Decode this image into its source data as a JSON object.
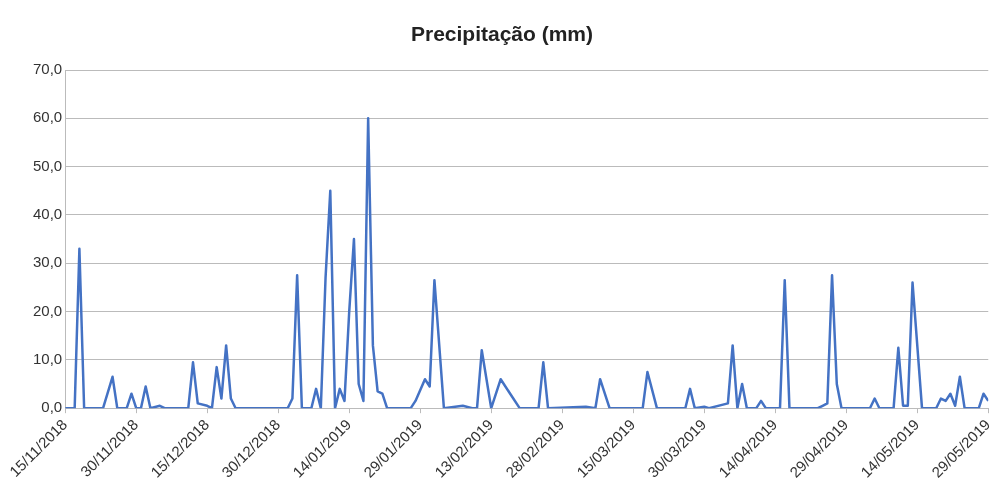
{
  "chart_data": {
    "type": "line",
    "title": "Precipitação (mm)",
    "x": [
      "2018-11-15",
      "2018-11-17",
      "2018-11-18",
      "2018-11-19",
      "2018-11-23",
      "2018-11-25",
      "2018-11-26",
      "2018-11-28",
      "2018-11-29",
      "2018-11-30",
      "2018-12-01",
      "2018-12-02",
      "2018-12-03",
      "2018-12-05",
      "2018-12-06",
      "2018-12-11",
      "2018-12-12",
      "2018-12-13",
      "2018-12-15",
      "2018-12-16",
      "2018-12-17",
      "2018-12-18",
      "2018-12-19",
      "2018-12-20",
      "2018-12-21",
      "2019-01-01",
      "2019-01-02",
      "2019-01-03",
      "2019-01-04",
      "2019-01-06",
      "2019-01-07",
      "2019-01-08",
      "2019-01-09",
      "2019-01-10",
      "2019-01-11",
      "2019-01-12",
      "2019-01-13",
      "2019-01-14",
      "2019-01-15",
      "2019-01-16",
      "2019-01-17",
      "2019-01-18",
      "2019-01-19",
      "2019-01-20",
      "2019-01-21",
      "2019-01-22",
      "2019-01-27",
      "2019-01-28",
      "2019-01-30",
      "2019-01-31",
      "2019-02-01",
      "2019-02-03",
      "2019-02-07",
      "2019-02-09",
      "2019-02-10",
      "2019-02-11",
      "2019-02-13",
      "2019-02-15",
      "2019-02-17",
      "2019-02-19",
      "2019-02-23",
      "2019-02-24",
      "2019-02-25",
      "2019-03-05",
      "2019-03-07",
      "2019-03-08",
      "2019-03-10",
      "2019-03-17",
      "2019-03-18",
      "2019-03-20",
      "2019-03-26",
      "2019-03-27",
      "2019-03-28",
      "2019-03-30",
      "2019-03-31",
      "2019-04-04",
      "2019-04-05",
      "2019-04-06",
      "2019-04-07",
      "2019-04-08",
      "2019-04-10",
      "2019-04-11",
      "2019-04-12",
      "2019-04-15",
      "2019-04-16",
      "2019-04-17",
      "2019-04-23",
      "2019-04-24",
      "2019-04-25",
      "2019-04-26",
      "2019-04-27",
      "2019-04-28",
      "2019-05-04",
      "2019-05-05",
      "2019-05-06",
      "2019-05-09",
      "2019-05-10",
      "2019-05-11",
      "2019-05-12",
      "2019-05-13",
      "2019-05-14",
      "2019-05-15",
      "2019-05-18",
      "2019-05-19",
      "2019-05-20",
      "2019-05-21",
      "2019-05-22",
      "2019-05-23",
      "2019-05-24",
      "2019-05-27",
      "2019-05-28",
      "2019-05-29"
    ],
    "series": [
      {
        "color": "#4472c4",
        "values": [
          0,
          0,
          33,
          0,
          0,
          6.5,
          0,
          0,
          3,
          0,
          0,
          4.5,
          0,
          0.5,
          0,
          0,
          9.5,
          1,
          0.5,
          0,
          8.5,
          2,
          13,
          2,
          0,
          0,
          2,
          27.5,
          0,
          0,
          4,
          0,
          27,
          45,
          0,
          4,
          1.5,
          20,
          35,
          5,
          1.5,
          60,
          13,
          3.5,
          3,
          0,
          0,
          1.5,
          6,
          4.5,
          26.5,
          0,
          0.5,
          0,
          0,
          12,
          0,
          6,
          3,
          0,
          0,
          9.5,
          0,
          0.3,
          0,
          6,
          0,
          0,
          7.5,
          0,
          0,
          4,
          0,
          0.3,
          0,
          1,
          13,
          0,
          5,
          0,
          0,
          1.5,
          0,
          0,
          26.5,
          0,
          0,
          0.5,
          1,
          27.5,
          5,
          0,
          0,
          2,
          0,
          0,
          12.5,
          0.5,
          0.5,
          26,
          13,
          0,
          0,
          2,
          1.5,
          3,
          0.5,
          6.5,
          0,
          0,
          3,
          1.5
        ]
      }
    ],
    "xlim": [
      "2018-11-15",
      "2019-05-29"
    ],
    "xticks": [
      {
        "value": "2018-11-15",
        "label": "15/11/2018"
      },
      {
        "value": "2018-11-30",
        "label": "30/11/2018"
      },
      {
        "value": "2018-12-15",
        "label": "15/12/2018"
      },
      {
        "value": "2018-12-30",
        "label": "30/12/2018"
      },
      {
        "value": "2019-01-14",
        "label": "14/01/2019"
      },
      {
        "value": "2019-01-29",
        "label": "29/01/2019"
      },
      {
        "value": "2019-02-13",
        "label": "13/02/2019"
      },
      {
        "value": "2019-02-28",
        "label": "28/02/2019"
      },
      {
        "value": "2019-03-15",
        "label": "15/03/2019"
      },
      {
        "value": "2019-03-30",
        "label": "30/03/2019"
      },
      {
        "value": "2019-04-14",
        "label": "14/04/2019"
      },
      {
        "value": "2019-04-29",
        "label": "29/04/2019"
      },
      {
        "value": "2019-05-14",
        "label": "14/05/2019"
      },
      {
        "value": "2019-05-29",
        "label": "29/05/2019"
      }
    ],
    "ylim": [
      0,
      70
    ],
    "yticks": [
      {
        "value": 0,
        "label": "0,0"
      },
      {
        "value": 10,
        "label": "10,0"
      },
      {
        "value": 20,
        "label": "20,0"
      },
      {
        "value": 30,
        "label": "30,0"
      },
      {
        "value": 40,
        "label": "40,0"
      },
      {
        "value": 50,
        "label": "50,0"
      },
      {
        "value": 60,
        "label": "60,0"
      },
      {
        "value": 70,
        "label": "70,0"
      }
    ],
    "grid": "y",
    "marker": "none",
    "line_style": "solid",
    "legend": false
  }
}
